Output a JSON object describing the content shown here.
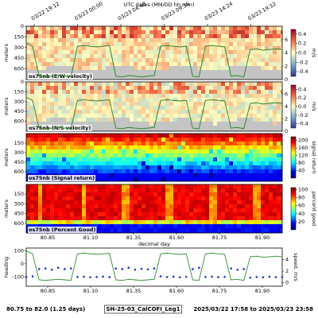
{
  "header": {
    "title": "UTC dates (MM/DD hh:mm)",
    "date_ticks": [
      "03/22 19:12",
      "03/23 00:00",
      "03/23 04:48",
      "03/23 09:36",
      "03/23 14:24",
      "03/23 19:12"
    ]
  },
  "panels": [
    {
      "label": "os75nb (E/W velocity)",
      "ylabel": "meters",
      "ylim": [
        0,
        750
      ],
      "yticks": [
        0,
        150,
        300,
        450,
        600
      ],
      "colorbar": {
        "label": "m/s",
        "clim": [
          -0.5,
          0.5
        ],
        "ticks": [
          0.4,
          0.2,
          {
            "value": 0,
            "label": "0.0"
          },
          -0.2,
          -0.4
        ]
      },
      "speed_axis": {
        "ylim": [
          0,
          8
        ],
        "ticks": [
          6,
          4,
          2,
          0
        ]
      }
    },
    {
      "label": "os75nb (N/S velocity)",
      "ylabel": "meters",
      "ylim": [
        0,
        750
      ],
      "yticks": [
        0,
        150,
        300,
        450,
        600
      ],
      "colorbar": {
        "label": "m/s",
        "clim": [
          -0.5,
          0.5
        ],
        "ticks": [
          0.4,
          0.2,
          {
            "value": 0,
            "label": "0.0"
          },
          -0.2,
          -0.4
        ]
      },
      "speed_axis": {
        "ylim": [
          0,
          8
        ],
        "ticks": [
          6,
          4,
          2,
          0
        ]
      }
    },
    {
      "label": "os75nb (Signal return)",
      "ylabel": "meters",
      "ylim": [
        0,
        750
      ],
      "yticks": [
        150,
        300,
        450,
        600
      ],
      "colorbar": {
        "label": "signal return",
        "clim": [
          0,
          220
        ],
        "ticks": [
          200,
          160,
          120,
          80,
          40
        ]
      }
    },
    {
      "label": "os75nb (Percent Good)",
      "ylabel": "meters",
      "ylim": [
        0,
        750
      ],
      "yticks": [
        150,
        300,
        450,
        600
      ],
      "colorbar": {
        "label": "percent good",
        "clim": [
          0,
          105
        ],
        "ticks": [
          100,
          80,
          60,
          40,
          20
        ]
      }
    }
  ],
  "xlabel": "decimal day",
  "xtick_labels": [
    "80.85",
    "81.10",
    "81.35",
    "81.60",
    "81.75",
    "81.90"
  ],
  "ship": {
    "color_speed": "#2e8b2e",
    "color_heading": "#1f2fd6",
    "speed": [
      5.5,
      5,
      0.5,
      0.4,
      0.5,
      0.6,
      0.5,
      0.4,
      5,
      5.1,
      5,
      4.9,
      5,
      5.1,
      0.5,
      0.4,
      0.6,
      0.5,
      0.4,
      0.5,
      0.6,
      5,
      5.1,
      5,
      4.9,
      5,
      0.5,
      0.4,
      5,
      5.1,
      5,
      4.9,
      0.5,
      0.6,
      0.4,
      4.5,
      4.6,
      4.4,
      4.5,
      4.6,
      4.5
    ],
    "heading": [
      -100,
      -95,
      -40,
      -35,
      -45,
      -30,
      -40,
      -35,
      -100,
      -98,
      -102,
      -100,
      -97,
      -101,
      -35,
      -40,
      -30,
      -45,
      -38,
      -42,
      -35,
      -95,
      -100,
      -98,
      -102,
      -99,
      -40,
      -30,
      -100,
      -97,
      -101,
      -99,
      -35,
      -45,
      -40,
      -105,
      -100,
      -102,
      -98,
      -101,
      -100
    ]
  },
  "bottom_panel": {
    "ylabel": "heading",
    "y2label": "speed, m/s",
    "ylim": [
      -170,
      120
    ],
    "yticks": [
      100,
      0,
      -100
    ],
    "y2lim": [
      -0.6,
      6
    ],
    "y2ticks": [
      0,
      2,
      4
    ]
  },
  "footer": {
    "left": "80.75 to 82.0 (1.25 days)",
    "center": "SH-25-03_CalCOFI_Leg1",
    "right": "2025/03/22 17:58 to 2025/03/23 23:58"
  }
}
